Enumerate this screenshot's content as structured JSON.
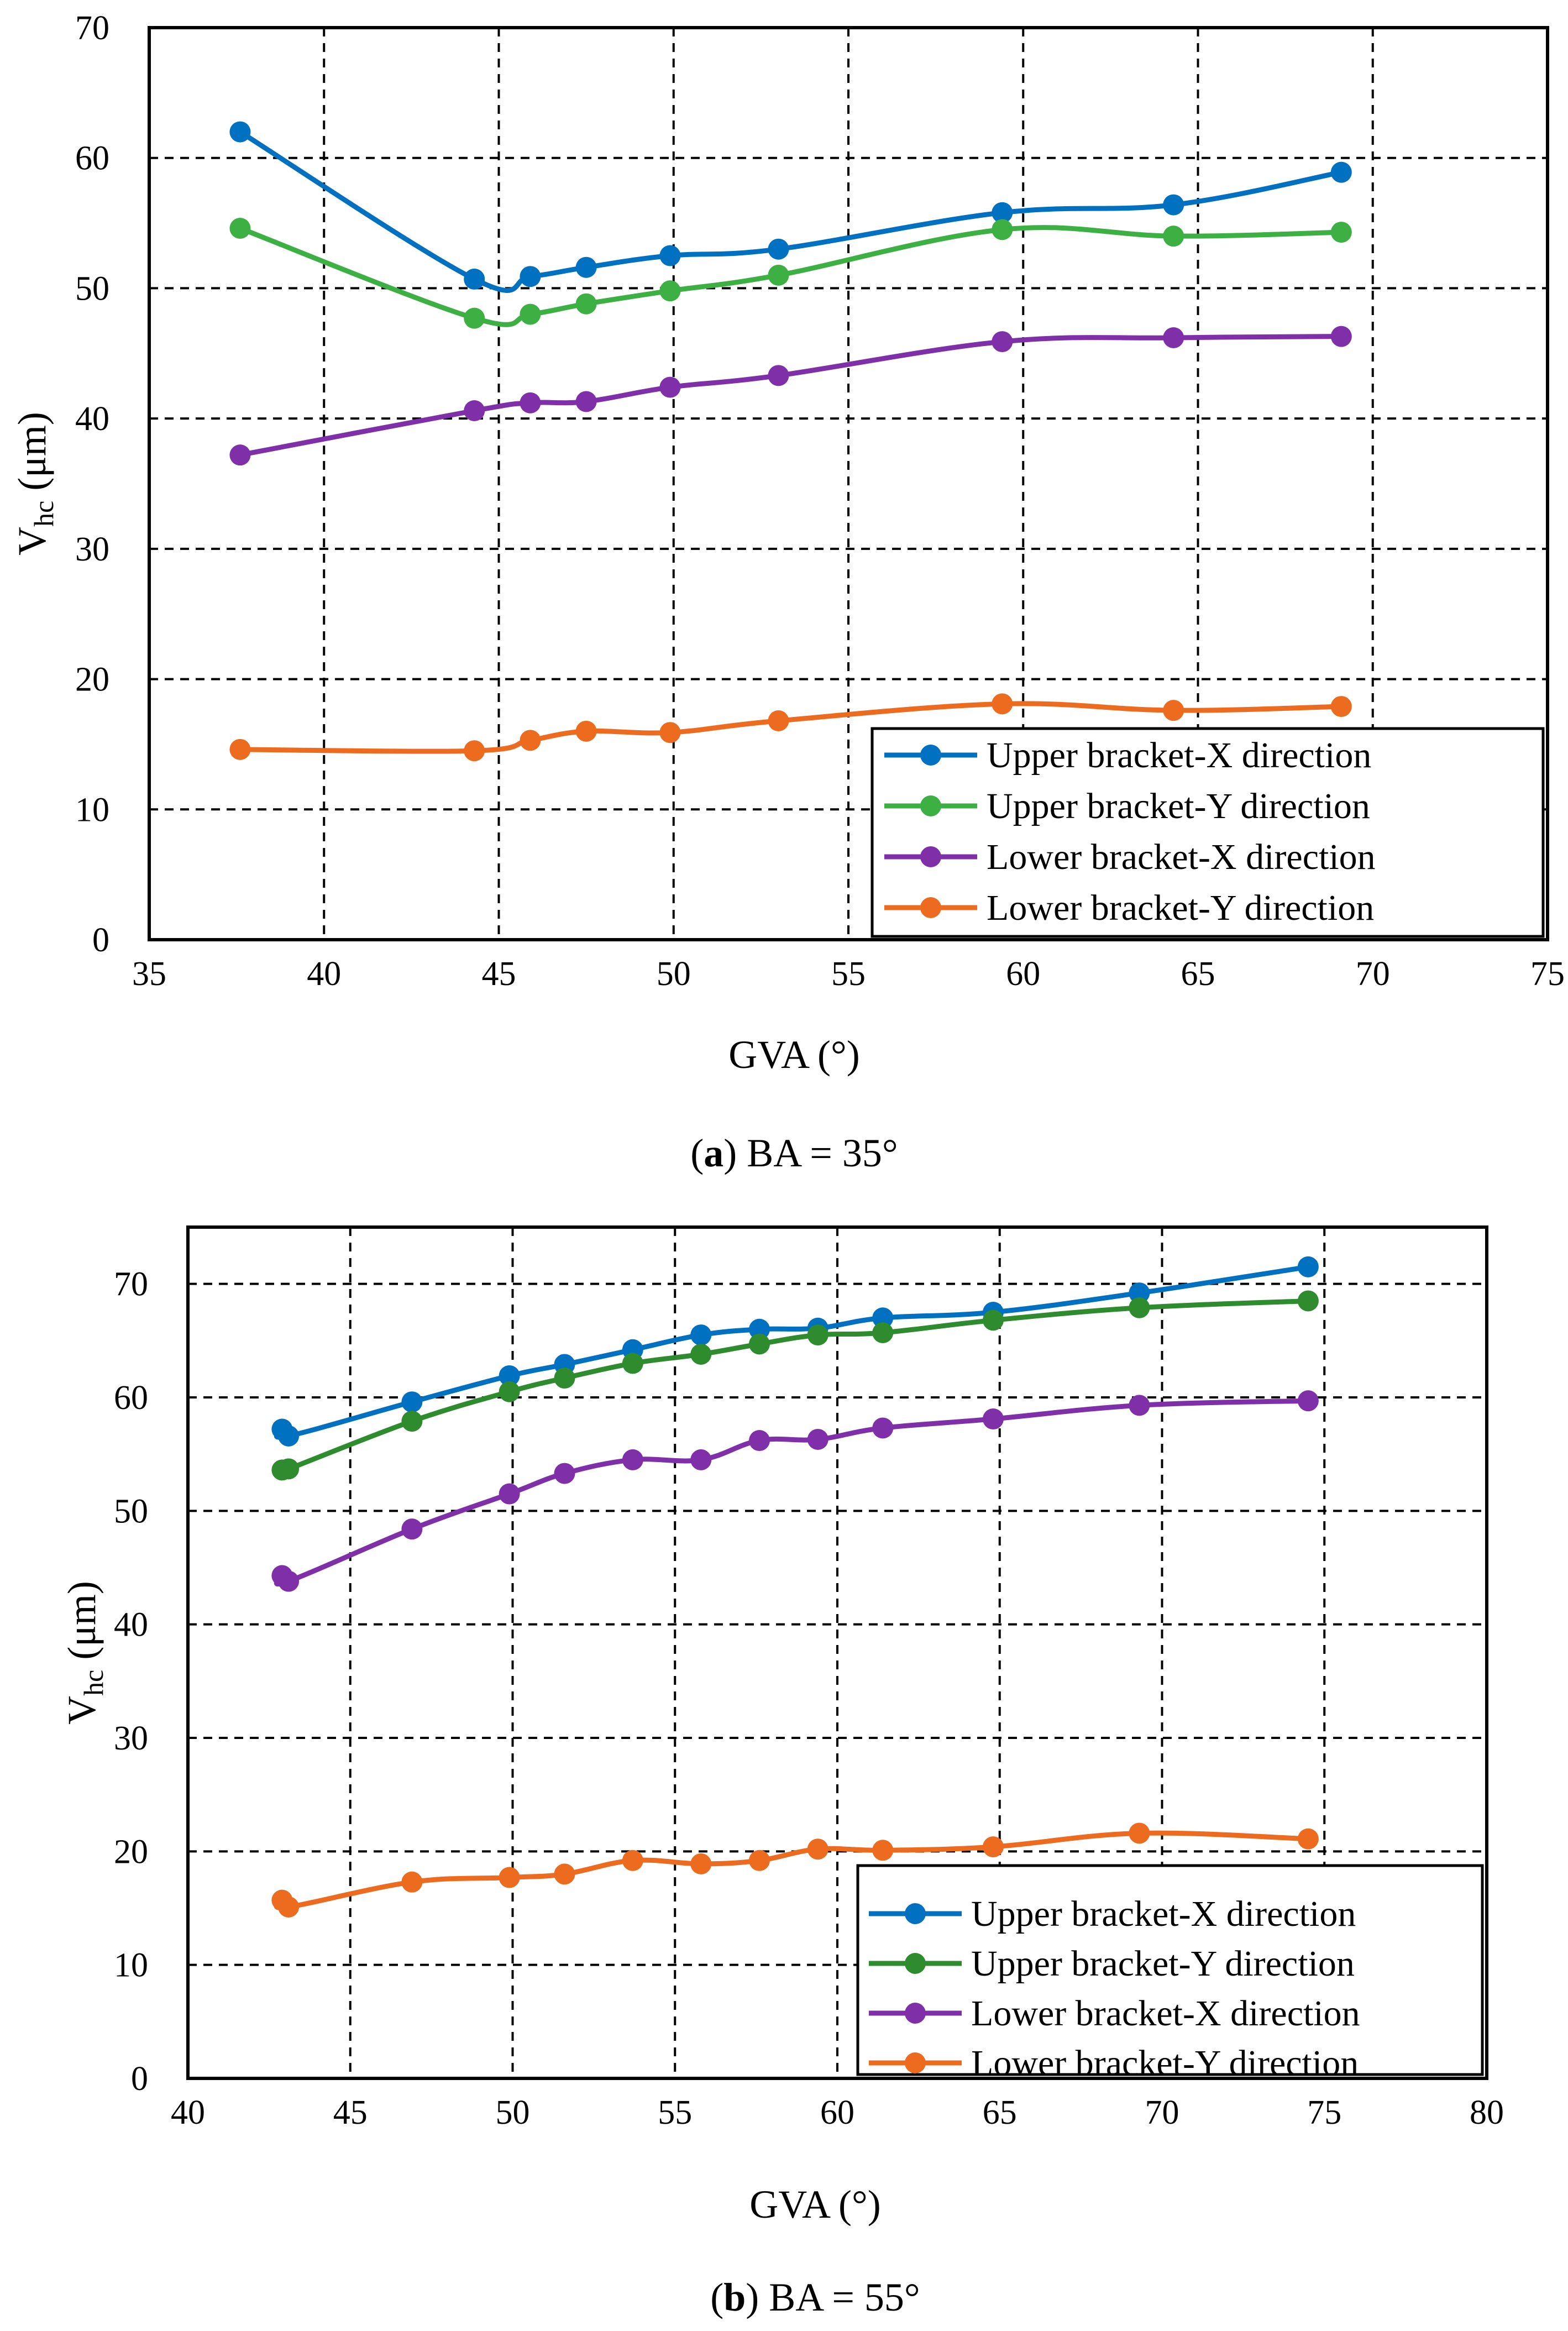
{
  "chart_data": [
    {
      "type": "line",
      "caption_letter": "a",
      "caption_text": "BA = 35°",
      "xlabel": "GVA (°)",
      "ylabel_base": "V",
      "ylabel_sub": "hc",
      "ylabel_unit": " (μm)",
      "xlim": [
        35,
        75
      ],
      "ylim": [
        0,
        70
      ],
      "xticks": [
        35,
        40,
        45,
        50,
        55,
        60,
        65,
        70,
        75
      ],
      "yticks": [
        0,
        10,
        20,
        30,
        40,
        50,
        60,
        70
      ],
      "grid": true,
      "legend_position": "bottom-right",
      "series": [
        {
          "name": "Upper bracket-X direction",
          "color": "#0070C0",
          "x": [
            37.6,
            44.3,
            45.9,
            47.5,
            49.9,
            53.0,
            59.4,
            64.3,
            69.1
          ],
          "y": [
            62.0,
            50.7,
            50.9,
            51.6,
            52.5,
            53.0,
            55.8,
            56.4,
            58.9
          ]
        },
        {
          "name": "Upper bracket-Y direction",
          "color": "#3CB043",
          "x": [
            37.6,
            44.3,
            45.9,
            47.5,
            49.9,
            53.0,
            59.4,
            64.3,
            69.1
          ],
          "y": [
            54.6,
            47.7,
            48.0,
            48.8,
            49.8,
            51.0,
            54.5,
            54.0,
            54.3
          ]
        },
        {
          "name": "Lower bracket-X direction",
          "color": "#7F2FA8",
          "x": [
            37.6,
            44.3,
            45.9,
            47.5,
            49.9,
            53.0,
            59.4,
            64.3,
            69.1
          ],
          "y": [
            37.2,
            40.6,
            41.2,
            41.3,
            42.4,
            43.3,
            45.9,
            46.2,
            46.3
          ]
        },
        {
          "name": "Lower bracket-Y direction",
          "color": "#ED6B1E",
          "x": [
            37.6,
            44.3,
            45.9,
            47.5,
            49.9,
            53.0,
            59.4,
            64.3,
            69.1
          ],
          "y": [
            14.6,
            14.5,
            15.3,
            16.0,
            15.9,
            16.8,
            18.1,
            17.6,
            17.9
          ]
        }
      ]
    },
    {
      "type": "line",
      "caption_letter": "b",
      "caption_text": "BA = 55°",
      "xlabel": "GVA (°)",
      "ylabel_base": "V",
      "ylabel_sub": "hc",
      "ylabel_unit": " (μm)",
      "xlim": [
        40,
        80
      ],
      "ylim": [
        0,
        75
      ],
      "xticks": [
        40,
        45,
        50,
        55,
        60,
        65,
        70,
        75,
        80
      ],
      "yticks": [
        0,
        10,
        20,
        30,
        40,
        50,
        60,
        70
      ],
      "grid": true,
      "legend_position": "bottom-right",
      "series": [
        {
          "name": "Upper bracket-X direction",
          "color": "#0070C0",
          "x": [
            42.9,
            43.1,
            46.9,
            49.9,
            51.6,
            53.7,
            55.8,
            57.6,
            59.4,
            61.4,
            64.8,
            69.3,
            74.5
          ],
          "y": [
            57.2,
            56.6,
            59.6,
            61.9,
            62.9,
            64.2,
            65.5,
            66.0,
            66.1,
            67.0,
            67.5,
            69.2,
            71.5
          ]
        },
        {
          "name": "Upper bracket-Y direction",
          "color": "#2E8B2E",
          "x": [
            42.9,
            43.1,
            46.9,
            49.9,
            51.6,
            53.7,
            55.8,
            57.6,
            59.4,
            61.4,
            64.8,
            69.3,
            74.5
          ],
          "y": [
            53.6,
            53.7,
            57.9,
            60.5,
            61.7,
            63.0,
            63.8,
            64.7,
            65.5,
            65.7,
            66.8,
            67.9,
            68.5
          ]
        },
        {
          "name": "Lower bracket-X direction",
          "color": "#7F2FA8",
          "x": [
            42.9,
            43.1,
            46.9,
            49.9,
            51.6,
            53.7,
            55.8,
            57.6,
            59.4,
            61.4,
            64.8,
            69.3,
            74.5
          ],
          "y": [
            44.3,
            43.8,
            48.4,
            51.5,
            53.3,
            54.5,
            54.5,
            56.2,
            56.3,
            57.3,
            58.1,
            59.3,
            59.7
          ]
        },
        {
          "name": "Lower bracket-Y direction",
          "color": "#ED6B1E",
          "x": [
            42.9,
            43.1,
            46.9,
            49.9,
            51.6,
            53.7,
            55.8,
            57.6,
            59.4,
            61.4,
            64.8,
            69.3,
            74.5
          ],
          "y": [
            15.7,
            15.1,
            17.3,
            17.7,
            18.0,
            19.2,
            18.9,
            19.2,
            20.2,
            20.1,
            20.4,
            21.6,
            21.1
          ]
        }
      ]
    }
  ]
}
